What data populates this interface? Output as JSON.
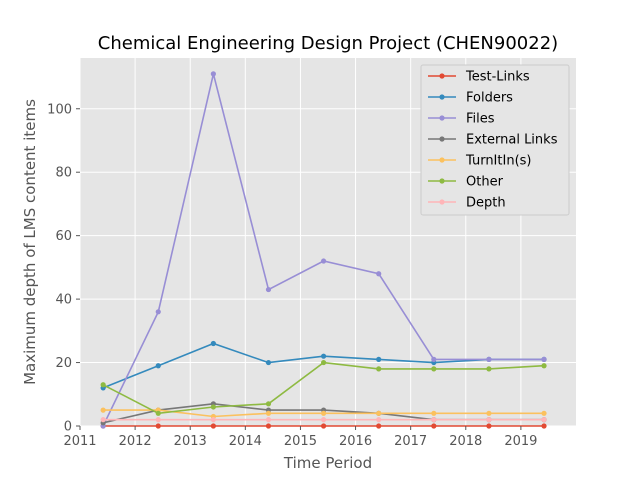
{
  "chart_data": {
    "type": "line",
    "title": "Chemical Engineering Design Project (CHEN90022)",
    "xlabel": "Time Period",
    "ylabel": "Maximum depth of LMS content items",
    "xlim": [
      2011,
      2020
    ],
    "ylim": [
      0,
      116
    ],
    "xticks": [
      2011,
      2012,
      2013,
      2014,
      2015,
      2016,
      2017,
      2018,
      2019
    ],
    "yticks": [
      0,
      20,
      40,
      60,
      80,
      100
    ],
    "grid": true,
    "legend_position": "top-right",
    "x": [
      2011.42,
      2012.42,
      2013.42,
      2014.42,
      2015.42,
      2016.42,
      2017.42,
      2018.42,
      2019.42
    ],
    "series": [
      {
        "name": "Test-Links",
        "color": "#E24A33",
        "values": [
          0,
          0,
          0,
          0,
          0,
          0,
          0,
          0,
          0
        ]
      },
      {
        "name": "Folders",
        "color": "#348ABD",
        "values": [
          12,
          19,
          26,
          20,
          22,
          21,
          20,
          21,
          21
        ]
      },
      {
        "name": "Files",
        "color": "#988ED5",
        "values": [
          0,
          36,
          111,
          43,
          52,
          48,
          21,
          21,
          21
        ]
      },
      {
        "name": "External Links",
        "color": "#777777",
        "values": [
          1,
          5,
          7,
          5,
          5,
          4,
          2,
          2,
          2
        ]
      },
      {
        "name": "TurnItIn(s)",
        "color": "#FBC15E",
        "values": [
          5,
          5,
          3,
          4,
          4,
          4,
          4,
          4,
          4
        ]
      },
      {
        "name": "Other",
        "color": "#8EBA42",
        "values": [
          13,
          4,
          6,
          7,
          20,
          18,
          18,
          18,
          19
        ]
      },
      {
        "name": "Depth",
        "color": "#FFB5B8",
        "values": [
          2,
          2,
          2,
          2,
          2,
          2,
          2,
          2,
          2
        ]
      }
    ]
  }
}
